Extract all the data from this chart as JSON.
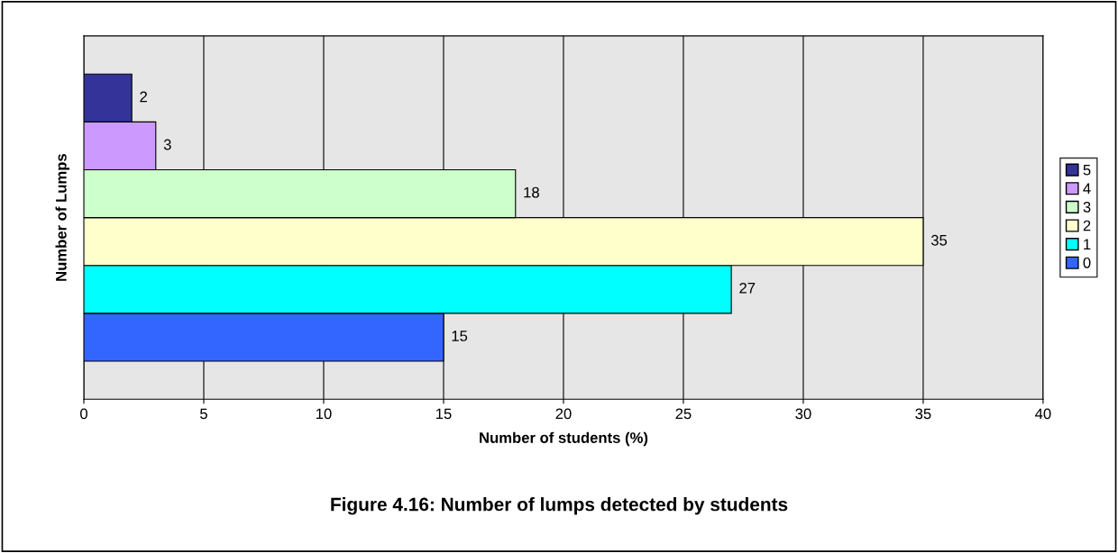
{
  "chart_data": {
    "type": "bar",
    "orientation": "horizontal",
    "title": "Figure 4.16: Number of lumps detected by students",
    "xlabel": "Number of students (%)",
    "ylabel": "Number of Lumps",
    "categories": [
      null
    ],
    "series": [
      {
        "name": "0",
        "color": "#3366ff",
        "values": [
          15
        ]
      },
      {
        "name": "1",
        "color": "#00ffff",
        "values": [
          27
        ]
      },
      {
        "name": "2",
        "color": "#ffffcc",
        "values": [
          35
        ]
      },
      {
        "name": "3",
        "color": "#ccffcc",
        "values": [
          18
        ]
      },
      {
        "name": "4",
        "color": "#cc99ff",
        "values": [
          3
        ]
      },
      {
        "name": "5",
        "color": "#333399",
        "values": [
          2
        ]
      }
    ],
    "xlim": [
      0,
      40
    ],
    "xticks": [
      0,
      5,
      10,
      15,
      20,
      25,
      30,
      35,
      40
    ],
    "grid": "x",
    "legend": "right",
    "data_labels": true
  }
}
